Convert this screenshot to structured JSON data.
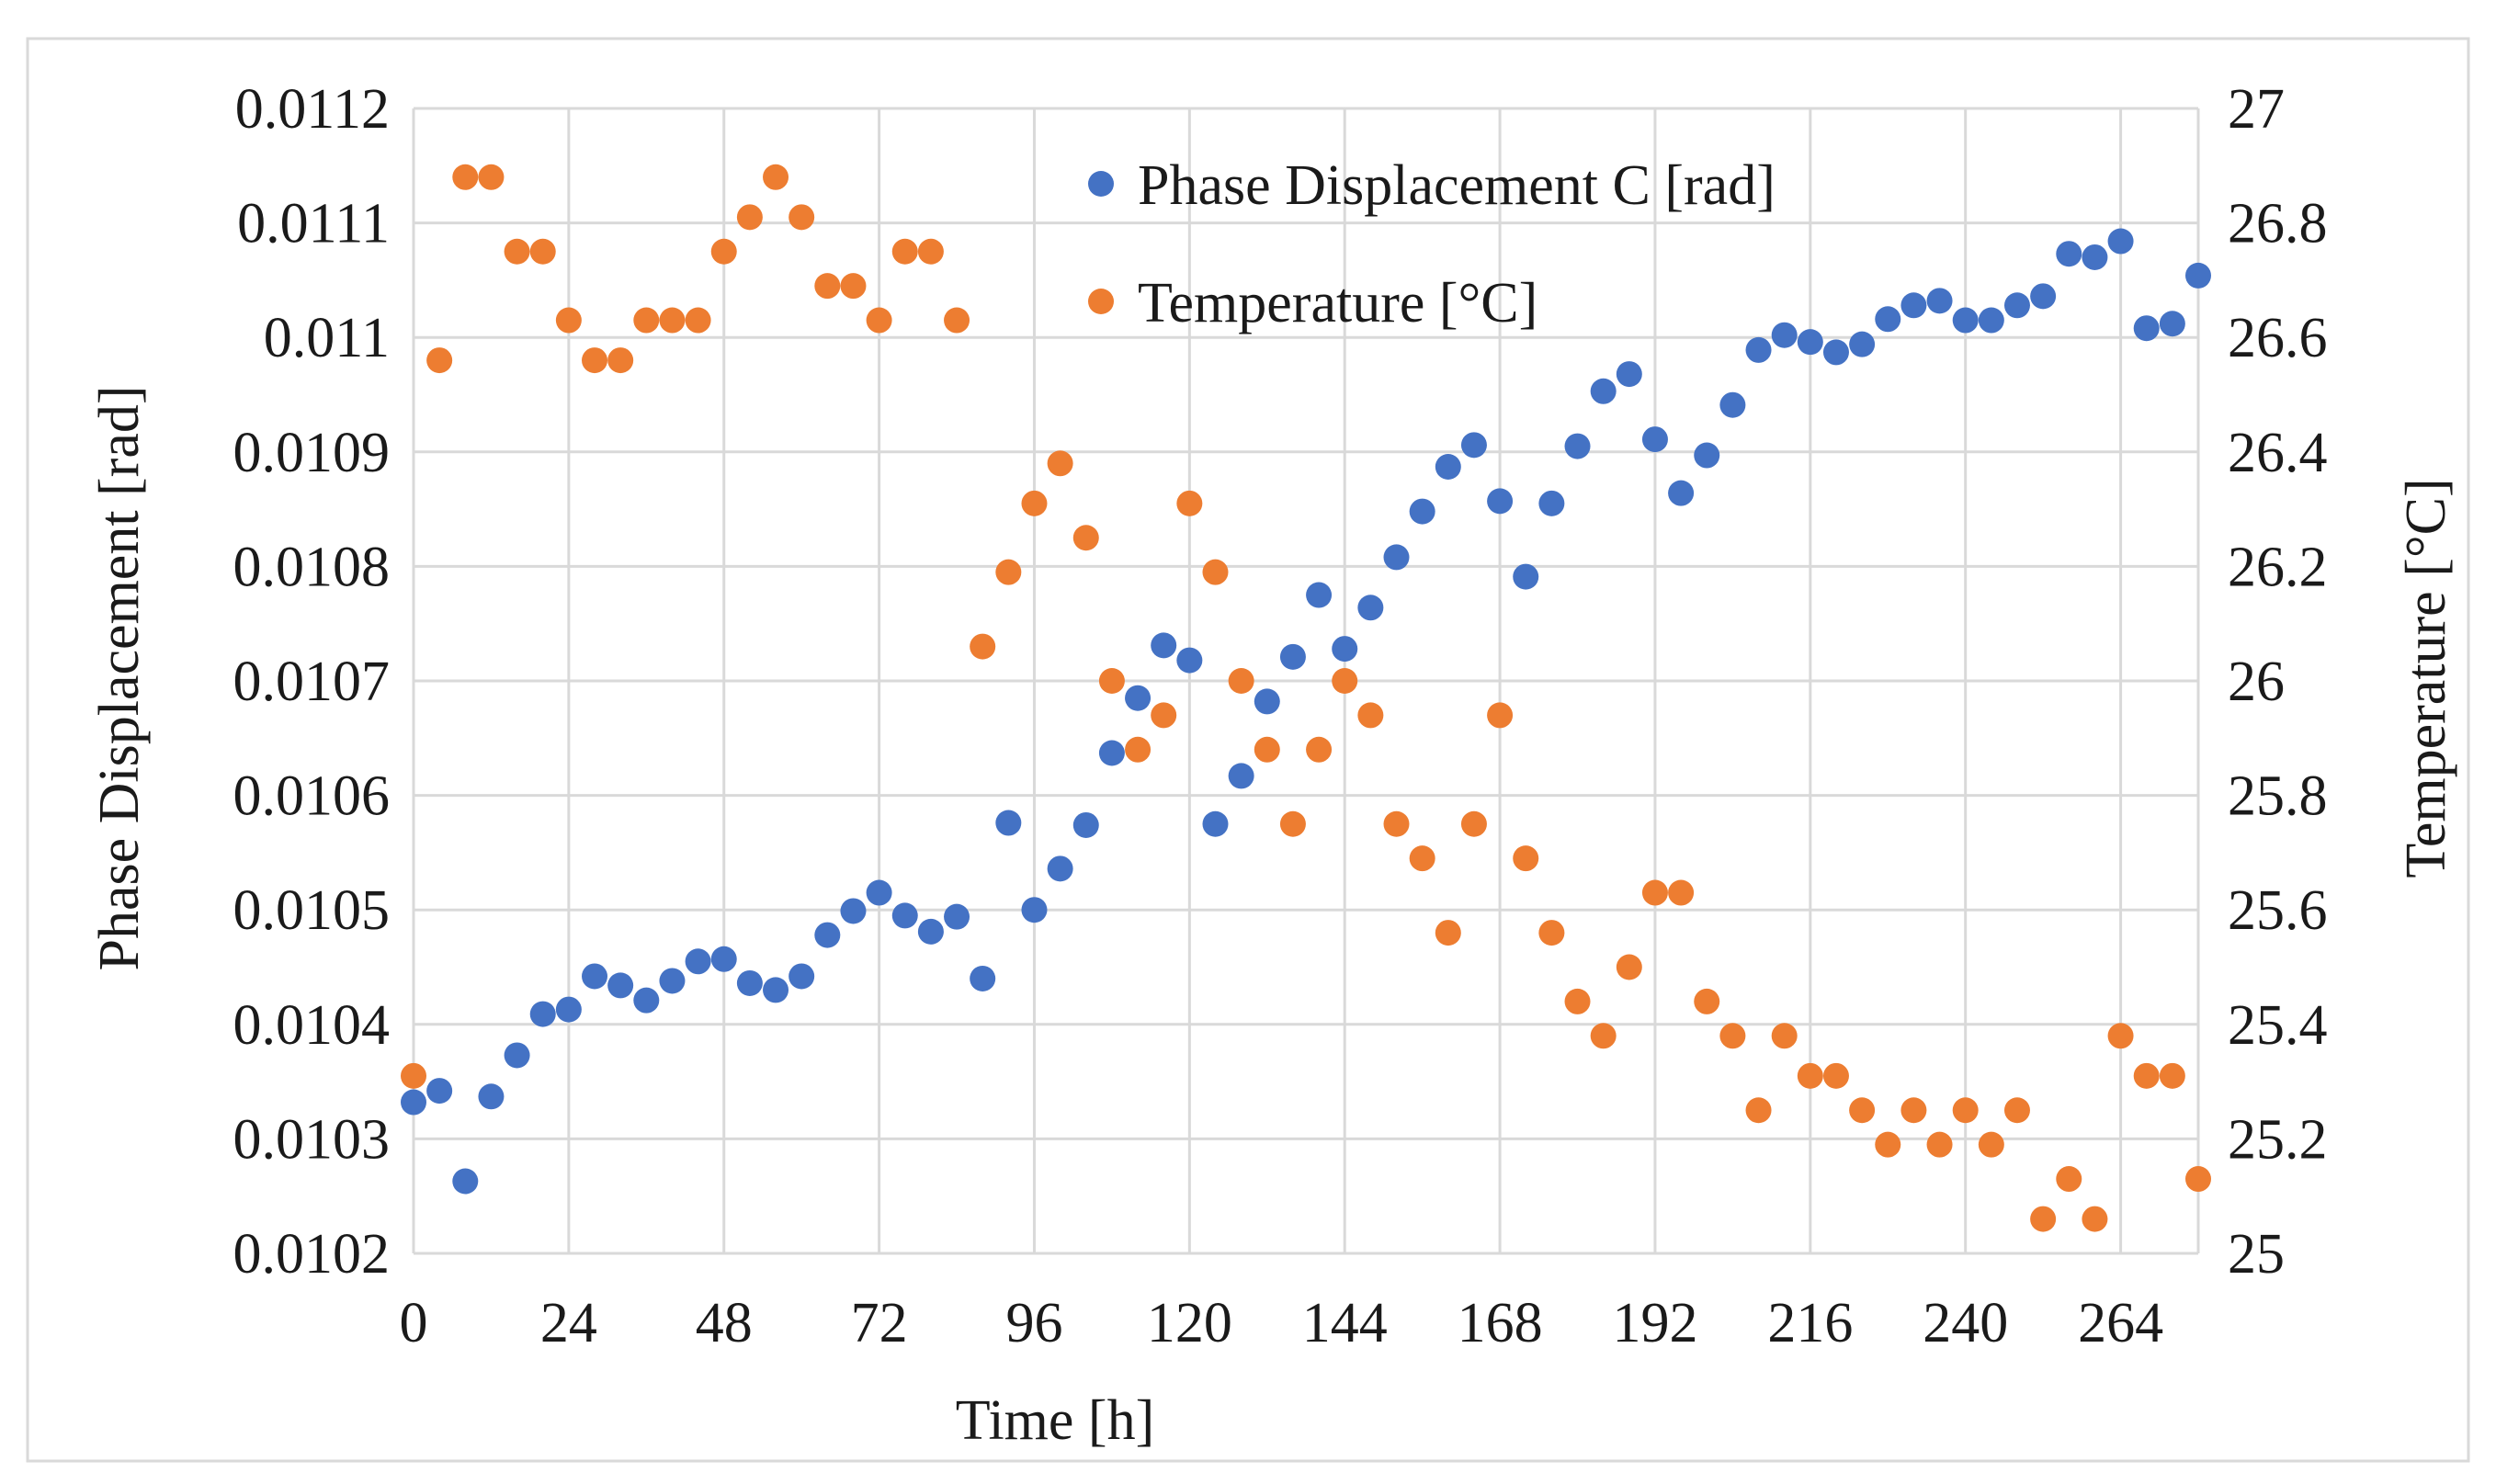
{
  "chart_data": {
    "type": "scatter",
    "xlabel": "Time [h]",
    "ylabel_left": "Phase Displacement [rad]",
    "ylabel_right": "Temperature [°C]",
    "xlim": [
      0,
      276
    ],
    "x_ticks": [
      0,
      24,
      48,
      72,
      96,
      120,
      144,
      168,
      192,
      216,
      240,
      264
    ],
    "x_tick_labels": [
      "0",
      "24",
      "48",
      "72",
      "96",
      "120",
      "144",
      "168",
      "192",
      "216",
      "240",
      "264"
    ],
    "ylim_left": [
      0.0102,
      0.0112
    ],
    "y_left_ticks": [
      0.0102,
      0.0103,
      0.0104,
      0.0105,
      0.0106,
      0.0107,
      0.0108,
      0.0109,
      0.011,
      0.0111,
      0.0112
    ],
    "y_left_tick_labels": [
      "0.0102",
      "0.0103",
      "0.0104",
      "0.0105",
      "0.0106",
      "0.0107",
      "0.0108",
      "0.0109",
      "0.011",
      "0.0111",
      "0.0112"
    ],
    "ylim_right": [
      25,
      27
    ],
    "y_right_ticks": [
      25,
      25.2,
      25.4,
      25.6,
      25.8,
      26,
      26.2,
      26.4,
      26.6,
      26.8,
      27
    ],
    "y_right_tick_labels": [
      "25",
      "25.2",
      "25.4",
      "25.6",
      "25.8",
      "26",
      "26.2",
      "26.4",
      "26.6",
      "26.8",
      "27"
    ],
    "grid": true,
    "legend_position": "top-center",
    "series": [
      {
        "name": "Phase Displacement C [rad]",
        "axis": "left",
        "color": "#4472c4",
        "points": [
          [
            0,
            0.010332
          ],
          [
            4,
            0.010342
          ],
          [
            8,
            0.010263
          ],
          [
            12,
            0.010337
          ],
          [
            16,
            0.010373
          ],
          [
            20,
            0.010409
          ],
          [
            24,
            0.010413
          ],
          [
            28,
            0.010442
          ],
          [
            32,
            0.010434
          ],
          [
            36,
            0.010421
          ],
          [
            40,
            0.010438
          ],
          [
            44,
            0.010455
          ],
          [
            48,
            0.010457
          ],
          [
            52,
            0.010436
          ],
          [
            56,
            0.01043
          ],
          [
            60,
            0.010442
          ],
          [
            64,
            0.010478
          ],
          [
            68,
            0.010499
          ],
          [
            72,
            0.010515
          ],
          [
            76,
            0.010495
          ],
          [
            80,
            0.010481
          ],
          [
            84,
            0.010494
          ],
          [
            88,
            0.01044
          ],
          [
            92,
            0.010576
          ],
          [
            96,
            0.0105
          ],
          [
            100,
            0.010536
          ],
          [
            104,
            0.010574
          ],
          [
            108,
            0.010637
          ],
          [
            112,
            0.010685
          ],
          [
            116,
            0.010731
          ],
          [
            120,
            0.010718
          ],
          [
            124,
            0.010575
          ],
          [
            128,
            0.010617
          ],
          [
            132,
            0.010682
          ],
          [
            136,
            0.010721
          ],
          [
            140,
            0.010775
          ],
          [
            144,
            0.010728
          ],
          [
            148,
            0.010764
          ],
          [
            152,
            0.010808
          ],
          [
            156,
            0.010848
          ],
          [
            160,
            0.010887
          ],
          [
            164,
            0.010906
          ],
          [
            168,
            0.010857
          ],
          [
            172,
            0.010791
          ],
          [
            176,
            0.010855
          ],
          [
            180,
            0.010905
          ],
          [
            184,
            0.010953
          ],
          [
            188,
            0.010968
          ],
          [
            192,
            0.010911
          ],
          [
            196,
            0.010864
          ],
          [
            200,
            0.010897
          ],
          [
            204,
            0.010941
          ],
          [
            208,
            0.010989
          ],
          [
            212,
            0.011002
          ],
          [
            216,
            0.010996
          ],
          [
            220,
            0.010987
          ],
          [
            224,
            0.010994
          ],
          [
            228,
            0.011016
          ],
          [
            232,
            0.011028
          ],
          [
            236,
            0.011032
          ],
          [
            240,
            0.011015
          ],
          [
            244,
            0.011015
          ],
          [
            248,
            0.011028
          ],
          [
            252,
            0.011036
          ],
          [
            256,
            0.011073
          ],
          [
            260,
            0.01107
          ],
          [
            264,
            0.011084
          ],
          [
            268,
            0.011008
          ],
          [
            272,
            0.011012
          ],
          [
            276,
            0.011054
          ]
        ]
      },
      {
        "name": "Temperature [°C]",
        "axis": "right",
        "color": "#ed7d31",
        "points": [
          [
            0,
            25.31
          ],
          [
            4,
            26.56
          ],
          [
            8,
            26.88
          ],
          [
            12,
            26.88
          ],
          [
            16,
            26.75
          ],
          [
            20,
            26.75
          ],
          [
            24,
            26.63
          ],
          [
            28,
            26.56
          ],
          [
            32,
            26.56
          ],
          [
            36,
            26.63
          ],
          [
            40,
            26.63
          ],
          [
            44,
            26.63
          ],
          [
            48,
            26.75
          ],
          [
            52,
            26.81
          ],
          [
            56,
            26.88
          ],
          [
            60,
            26.81
          ],
          [
            64,
            26.69
          ],
          [
            68,
            26.69
          ],
          [
            72,
            26.63
          ],
          [
            76,
            26.75
          ],
          [
            80,
            26.75
          ],
          [
            84,
            26.63
          ],
          [
            88,
            26.06
          ],
          [
            92,
            26.19
          ],
          [
            96,
            26.31
          ],
          [
            100,
            26.38
          ],
          [
            104,
            26.25
          ],
          [
            108,
            26.0
          ],
          [
            112,
            25.88
          ],
          [
            116,
            25.94
          ],
          [
            120,
            26.31
          ],
          [
            124,
            26.19
          ],
          [
            128,
            26.0
          ],
          [
            132,
            25.88
          ],
          [
            136,
            25.75
          ],
          [
            140,
            25.88
          ],
          [
            144,
            26.0
          ],
          [
            148,
            25.94
          ],
          [
            152,
            25.75
          ],
          [
            156,
            25.69
          ],
          [
            160,
            25.56
          ],
          [
            164,
            25.75
          ],
          [
            168,
            25.94
          ],
          [
            172,
            25.69
          ],
          [
            176,
            25.56
          ],
          [
            180,
            25.44
          ],
          [
            184,
            25.38
          ],
          [
            188,
            25.5
          ],
          [
            192,
            25.63
          ],
          [
            196,
            25.63
          ],
          [
            200,
            25.44
          ],
          [
            204,
            25.38
          ],
          [
            208,
            25.25
          ],
          [
            212,
            25.38
          ],
          [
            216,
            25.31
          ],
          [
            220,
            25.31
          ],
          [
            224,
            25.25
          ],
          [
            228,
            25.19
          ],
          [
            232,
            25.25
          ],
          [
            236,
            25.19
          ],
          [
            240,
            25.25
          ],
          [
            244,
            25.19
          ],
          [
            248,
            25.25
          ],
          [
            252,
            25.06
          ],
          [
            256,
            25.13
          ],
          [
            260,
            25.06
          ],
          [
            264,
            25.38
          ],
          [
            268,
            25.31
          ],
          [
            272,
            25.31
          ],
          [
            276,
            25.13
          ]
        ]
      }
    ]
  }
}
